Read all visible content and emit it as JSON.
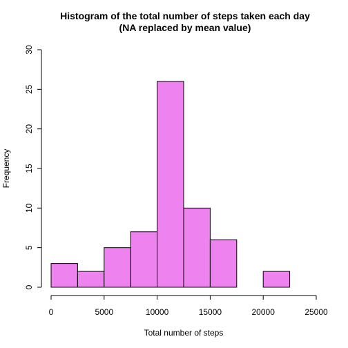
{
  "chart_data": {
    "type": "bar",
    "title": "Histogram of the total number of steps taken each day",
    "subtitle": "(NA replaced by mean value)",
    "xlabel": "Total number of steps",
    "ylabel": "Frequency",
    "bin_edges": [
      0,
      2500,
      5000,
      7500,
      10000,
      12500,
      15000,
      17500,
      20000,
      22500
    ],
    "values": [
      3,
      2,
      5,
      7,
      26,
      10,
      6,
      0,
      2
    ],
    "xlim": [
      0,
      25000
    ],
    "ylim": [
      0,
      30
    ],
    "x_ticks": [
      0,
      5000,
      10000,
      15000,
      20000,
      25000
    ],
    "y_ticks": [
      0,
      5,
      10,
      15,
      20,
      25,
      30
    ],
    "bar_color": "#EE82EE",
    "grid": false
  }
}
